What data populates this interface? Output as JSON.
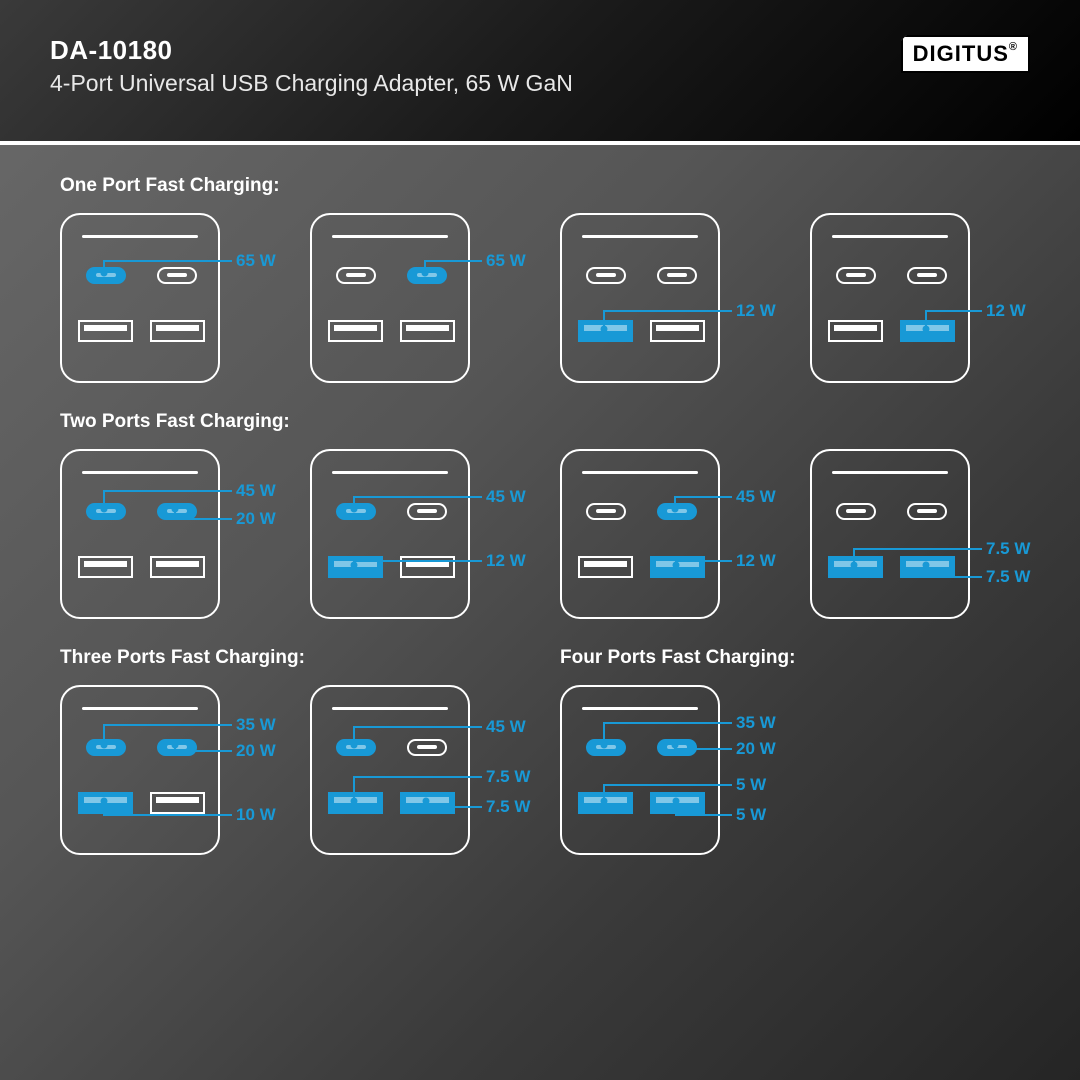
{
  "header": {
    "model": "DA-10180",
    "subtitle": "4-Port Universal USB Charging Adapter, 65 W GaN",
    "brand": "DIGITUS",
    "brand_mark": "®"
  },
  "colors": {
    "accent": "#1899d6",
    "outline": "#ffffff"
  },
  "sections": [
    {
      "title": "One Port Fast Charging:",
      "chargers": [
        {
          "ports": {
            "c1": {
              "active": true,
              "w": "65 W"
            },
            "c2": {
              "active": false
            },
            "a1": {
              "active": false
            },
            "a2": {
              "active": false
            }
          }
        },
        {
          "ports": {
            "c1": {
              "active": false
            },
            "c2": {
              "active": true,
              "w": "65 W"
            },
            "a1": {
              "active": false
            },
            "a2": {
              "active": false
            }
          }
        },
        {
          "ports": {
            "c1": {
              "active": false
            },
            "c2": {
              "active": false
            },
            "a1": {
              "active": true,
              "w": "12 W"
            },
            "a2": {
              "active": false
            }
          }
        },
        {
          "ports": {
            "c1": {
              "active": false
            },
            "c2": {
              "active": false
            },
            "a1": {
              "active": false
            },
            "a2": {
              "active": true,
              "w": "12 W"
            }
          }
        }
      ]
    },
    {
      "title": "Two Ports Fast Charging:",
      "chargers": [
        {
          "ports": {
            "c1": {
              "active": true,
              "w": "45 W"
            },
            "c2": {
              "active": true,
              "w": "20 W"
            },
            "a1": {
              "active": false
            },
            "a2": {
              "active": false
            }
          }
        },
        {
          "ports": {
            "c1": {
              "active": true,
              "w": "45 W"
            },
            "c2": {
              "active": false
            },
            "a1": {
              "active": true,
              "w": "12 W"
            },
            "a2": {
              "active": false
            }
          }
        },
        {
          "ports": {
            "c1": {
              "active": false
            },
            "c2": {
              "active": true,
              "w": "45 W"
            },
            "a1": {
              "active": false
            },
            "a2": {
              "active": true,
              "w": "12 W"
            }
          }
        },
        {
          "ports": {
            "c1": {
              "active": false
            },
            "c2": {
              "active": false
            },
            "a1": {
              "active": true,
              "w": "7.5 W"
            },
            "a2": {
              "active": true,
              "w": "7.5 W"
            }
          }
        }
      ]
    }
  ],
  "split_sections": [
    {
      "title": "Three Ports Fast Charging:",
      "chargers": [
        {
          "ports": {
            "c1": {
              "active": true,
              "w": "35 W"
            },
            "c2": {
              "active": true,
              "w": "20 W"
            },
            "a1": {
              "active": true,
              "w": "10 W"
            },
            "a2": {
              "active": false
            }
          }
        },
        {
          "ports": {
            "c1": {
              "active": true,
              "w": "45 W"
            },
            "c2": {
              "active": false
            },
            "a1": {
              "active": true,
              "w": "7.5 W"
            },
            "a2": {
              "active": true,
              "w": "7.5 W"
            }
          }
        }
      ]
    },
    {
      "title": "Four Ports Fast Charging:",
      "chargers": [
        {
          "ports": {
            "c1": {
              "active": true,
              "w": "35 W"
            },
            "c2": {
              "active": true,
              "w": "20 W"
            },
            "a1": {
              "active": true,
              "w": "5 W"
            },
            "a2": {
              "active": true,
              "w": "5 W"
            }
          }
        }
      ]
    }
  ]
}
